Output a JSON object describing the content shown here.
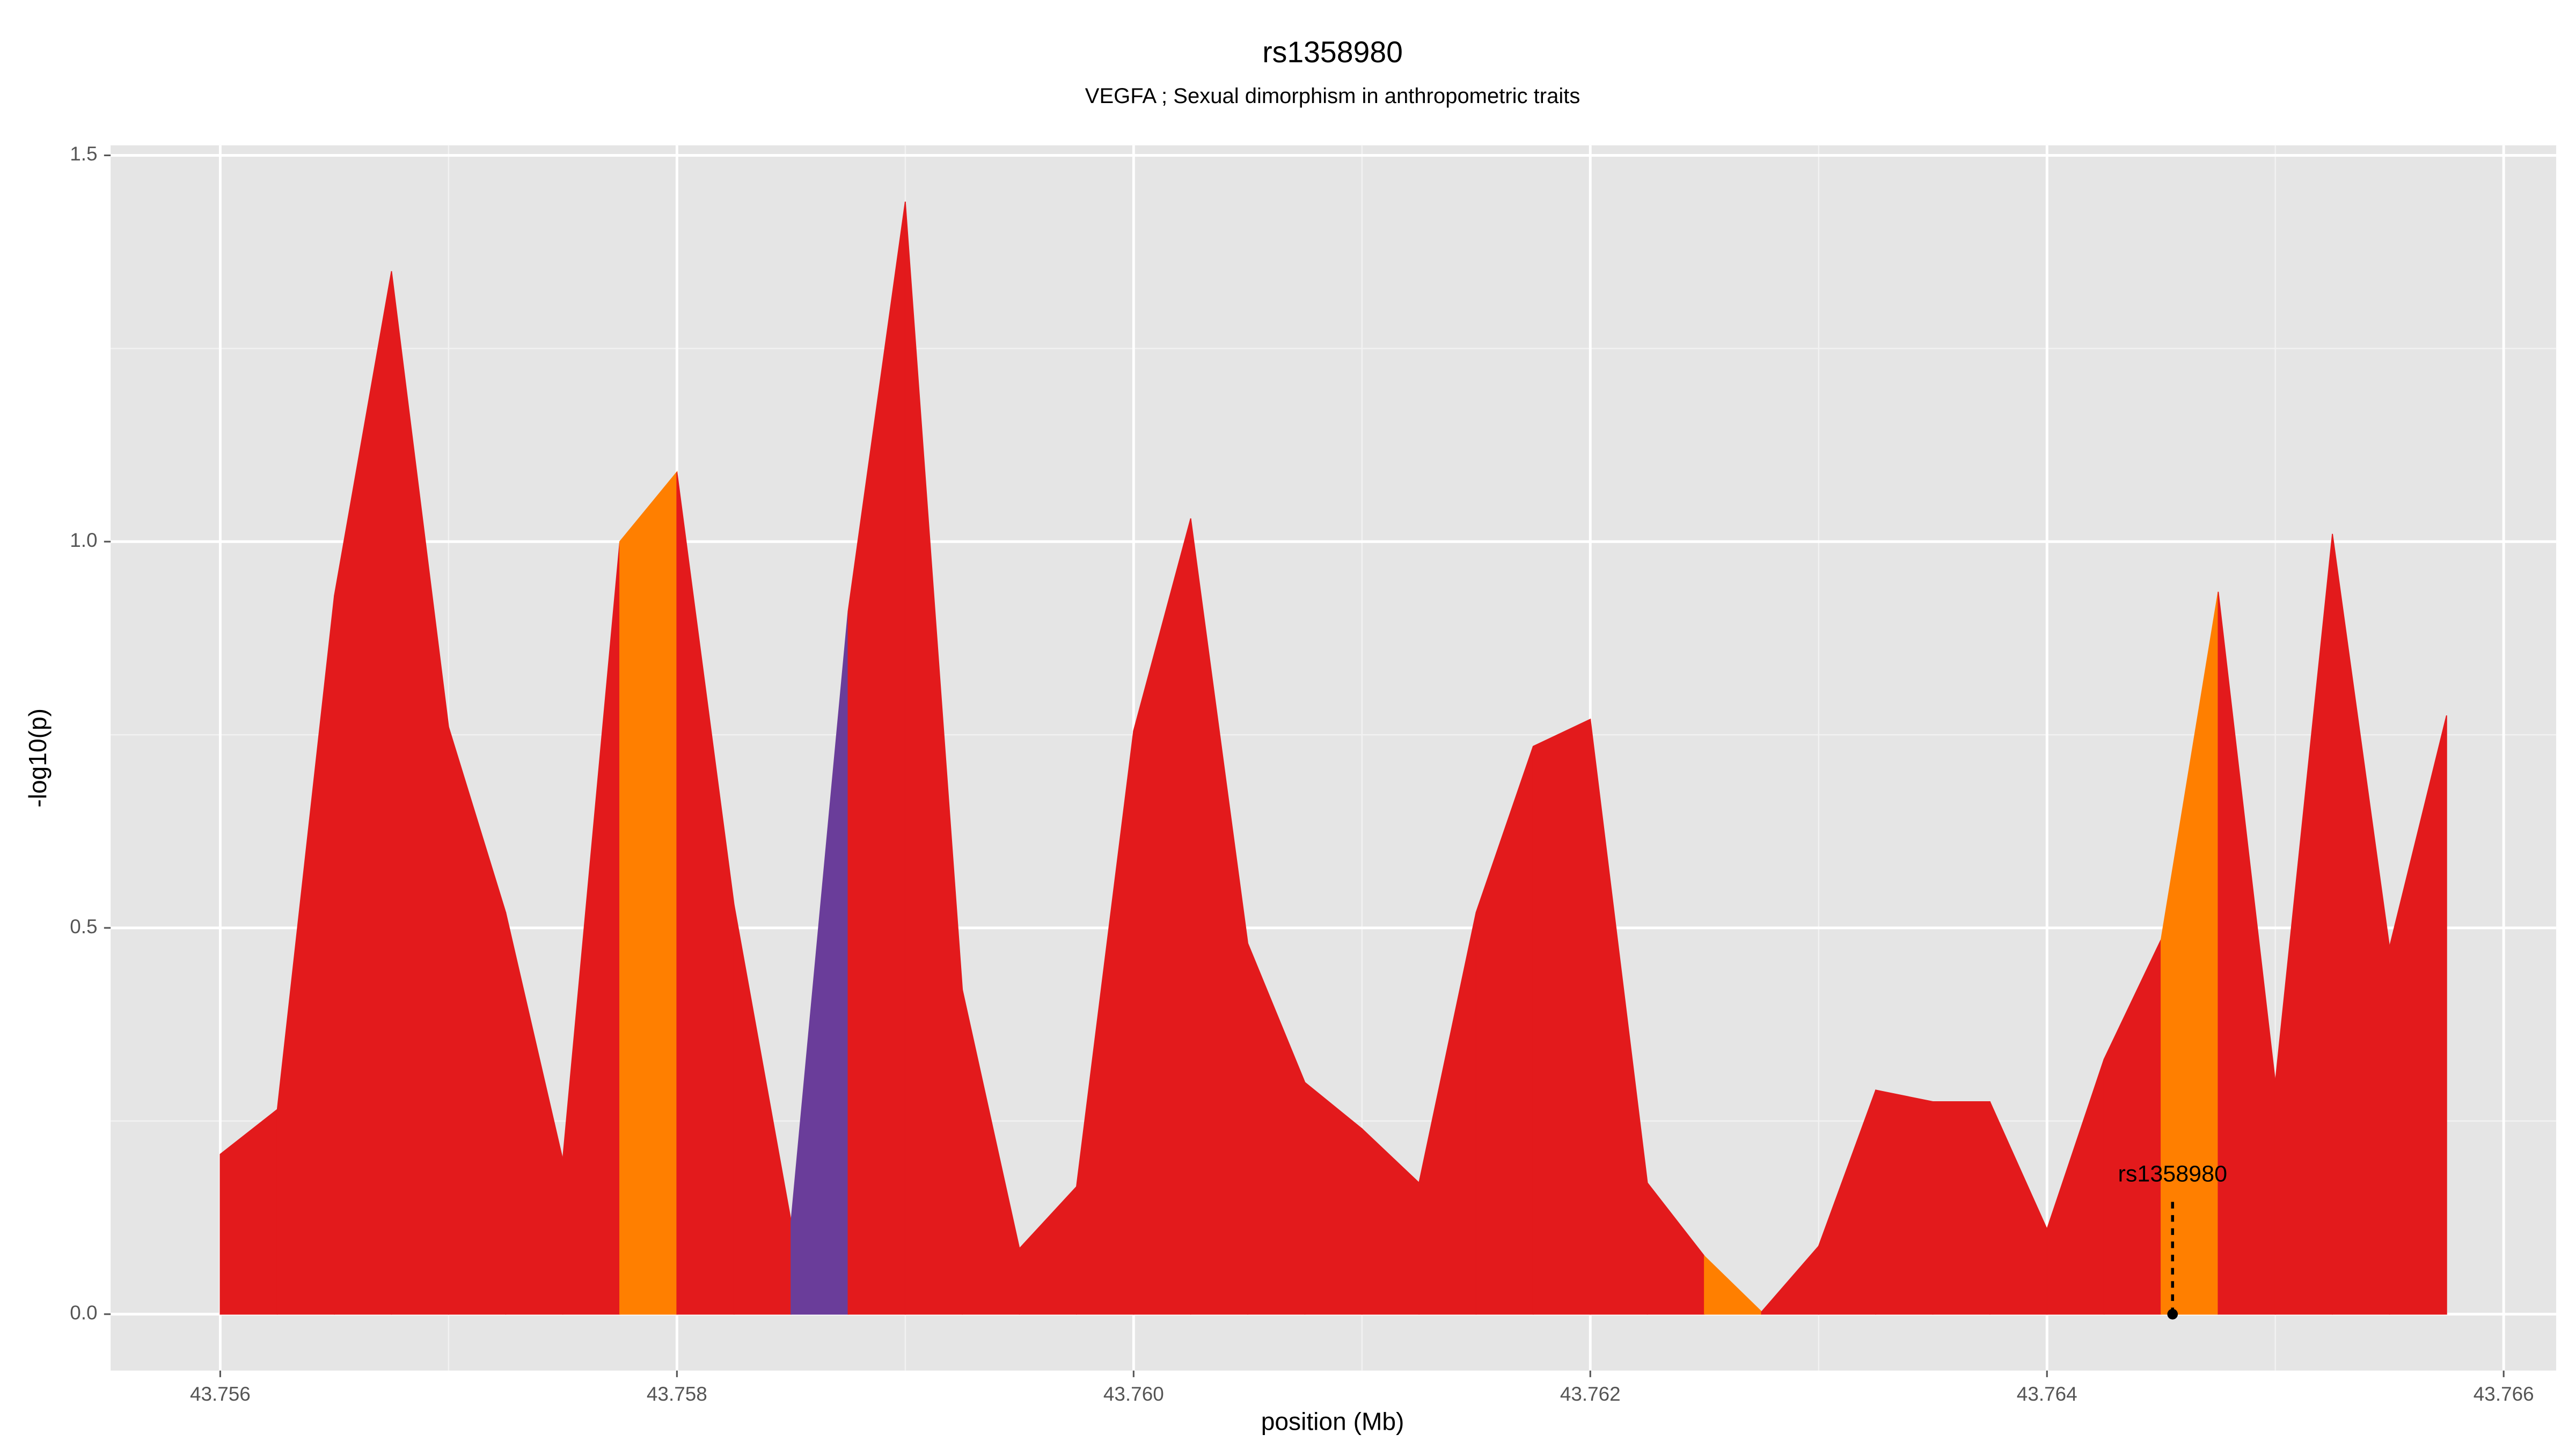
{
  "chart_data": {
    "type": "area",
    "title": "rs1358980",
    "subtitle": "VEGFA ; Sexual dimorphism in anthropometric traits",
    "x_label": "position (Mb)",
    "y_label": "-log10(p)",
    "x": [
      43.756,
      43.75625,
      43.7565,
      43.75675,
      43.757,
      43.75725,
      43.7575,
      43.75775,
      43.758,
      43.75825,
      43.7585,
      43.75875,
      43.759,
      43.75925,
      43.7595,
      43.75975,
      43.76,
      43.76025,
      43.7605,
      43.76075,
      43.761,
      43.76125,
      43.7615,
      43.76175,
      43.762,
      43.76225,
      43.7625,
      43.76275,
      43.763,
      43.76325,
      43.7635,
      43.76375,
      43.764,
      43.76425,
      43.7645,
      43.76475,
      43.765,
      43.76525,
      43.7655,
      43.76575
    ],
    "values": [
      0.207,
      0.265,
      0.93,
      1.35,
      0.76,
      0.52,
      0.2,
      1.0,
      1.09,
      0.53,
      0.12,
      0.91,
      1.44,
      0.42,
      0.085,
      0.165,
      0.755,
      1.03,
      0.48,
      0.3,
      0.24,
      0.17,
      0.52,
      0.735,
      0.77,
      0.17,
      0.075,
      0.003,
      0.088,
      0.29,
      0.275,
      0.275,
      0.11,
      0.33,
      0.485,
      0.935,
      0.3,
      1.01,
      0.475,
      0.775
    ],
    "colors": [
      "#e31a1c",
      "#e31a1c",
      "#e31a1c",
      "#e31a1c",
      "#e31a1c",
      "#e31a1c",
      "#e31a1c",
      "#ff7f00",
      "#e31a1c",
      "#e31a1c",
      "#6a3d9a",
      "#e31a1c",
      "#e31a1c",
      "#e31a1c",
      "#e31a1c",
      "#e31a1c",
      "#e31a1c",
      "#e31a1c",
      "#e31a1c",
      "#e31a1c",
      "#e31a1c",
      "#e31a1c",
      "#e31a1c",
      "#e31a1c",
      "#e31a1c",
      "#e31a1c",
      "#ff7f00",
      "#e31a1c",
      "#e31a1c",
      "#e31a1c",
      "#e31a1c",
      "#e31a1c",
      "#e31a1c",
      "#e31a1c",
      "#ff7f00",
      "#e31a1c",
      "#e31a1c",
      "#e31a1c",
      "#e31a1c",
      "#e31a1c"
    ],
    "xlim": [
      43.75552,
      43.76623
    ],
    "ylim": [
      -0.073,
      1.513
    ],
    "xticks": [
      43.756,
      43.758,
      {
        "value": 43.76,
        "label": "43.760"
      },
      43.762,
      43.764,
      43.766
    ],
    "yticks": [
      {
        "value": 0,
        "label": "0.0"
      },
      0.5,
      {
        "value": 1,
        "label": "1.0"
      },
      1.5
    ],
    "grid": true,
    "annotation": {
      "text": "rs1358980",
      "x": 43.76455
    }
  }
}
